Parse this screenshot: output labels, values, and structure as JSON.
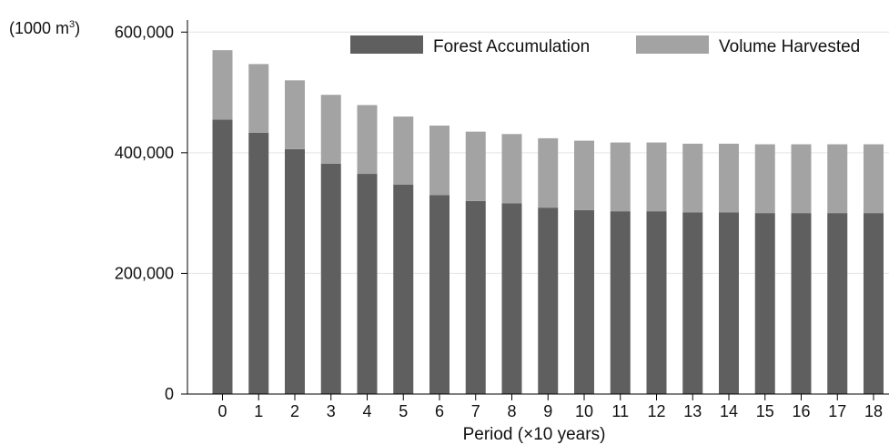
{
  "chart_data": {
    "type": "bar",
    "stacked": true,
    "xlabel": "Period (×10 years)",
    "unit_label": {
      "prefix": "(1000 m",
      "sup": "3",
      "suffix": ")"
    },
    "categories": [
      "0",
      "1",
      "2",
      "3",
      "4",
      "5",
      "6",
      "7",
      "8",
      "9",
      "10",
      "11",
      "12",
      "13",
      "14",
      "15",
      "16",
      "17",
      "18"
    ],
    "series": [
      {
        "name": "Forest Accumulation",
        "color": "#5f5f5f",
        "values": [
          455000,
          433000,
          406000,
          382000,
          365000,
          347000,
          330000,
          320000,
          316000,
          309000,
          305000,
          303000,
          303000,
          301000,
          301000,
          300000,
          300000,
          300000,
          300000
        ]
      },
      {
        "name": "Volume Harvested",
        "color": "#a3a3a3",
        "values": [
          115000,
          114000,
          114000,
          114000,
          114000,
          113000,
          115000,
          115000,
          115000,
          115000,
          115000,
          114000,
          114000,
          114000,
          114000,
          114000,
          114000,
          114000,
          114000
        ]
      }
    ],
    "y_ticks": [
      {
        "value": 0,
        "label": "0"
      },
      {
        "value": 200000,
        "label": "200,000"
      },
      {
        "value": 400000,
        "label": "400,000"
      },
      {
        "value": 600000,
        "label": "600,000"
      }
    ],
    "ylim": [
      0,
      620000
    ],
    "grid": true,
    "legend_position": "top-right"
  }
}
